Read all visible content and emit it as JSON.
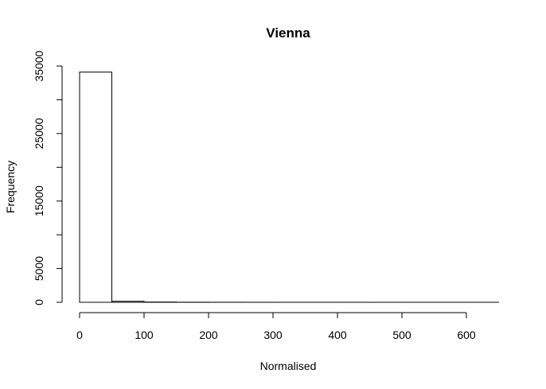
{
  "chart_data": {
    "type": "bar",
    "title": "Vienna",
    "xlabel": "Normalised",
    "ylabel": "Frequency",
    "bin_edges": [
      0,
      50,
      100,
      150,
      200,
      250,
      300,
      350,
      400,
      450,
      500,
      550,
      600,
      650
    ],
    "values": [
      34100,
      150,
      40,
      15,
      8,
      5,
      3,
      2,
      2,
      1,
      1,
      1,
      1
    ],
    "xlim": [
      0,
      650
    ],
    "ylim": [
      0,
      35000
    ],
    "x_ticks": [
      "0",
      "100",
      "200",
      "300",
      "400",
      "500",
      "600"
    ],
    "y_ticks": [
      "0",
      "5000",
      "15000",
      "25000",
      "35000"
    ],
    "y_minor_ticks": [
      10000,
      20000,
      30000
    ],
    "grid": false,
    "colors": {
      "bar_fill": "#ffffff",
      "bar_stroke": "#000000"
    }
  }
}
